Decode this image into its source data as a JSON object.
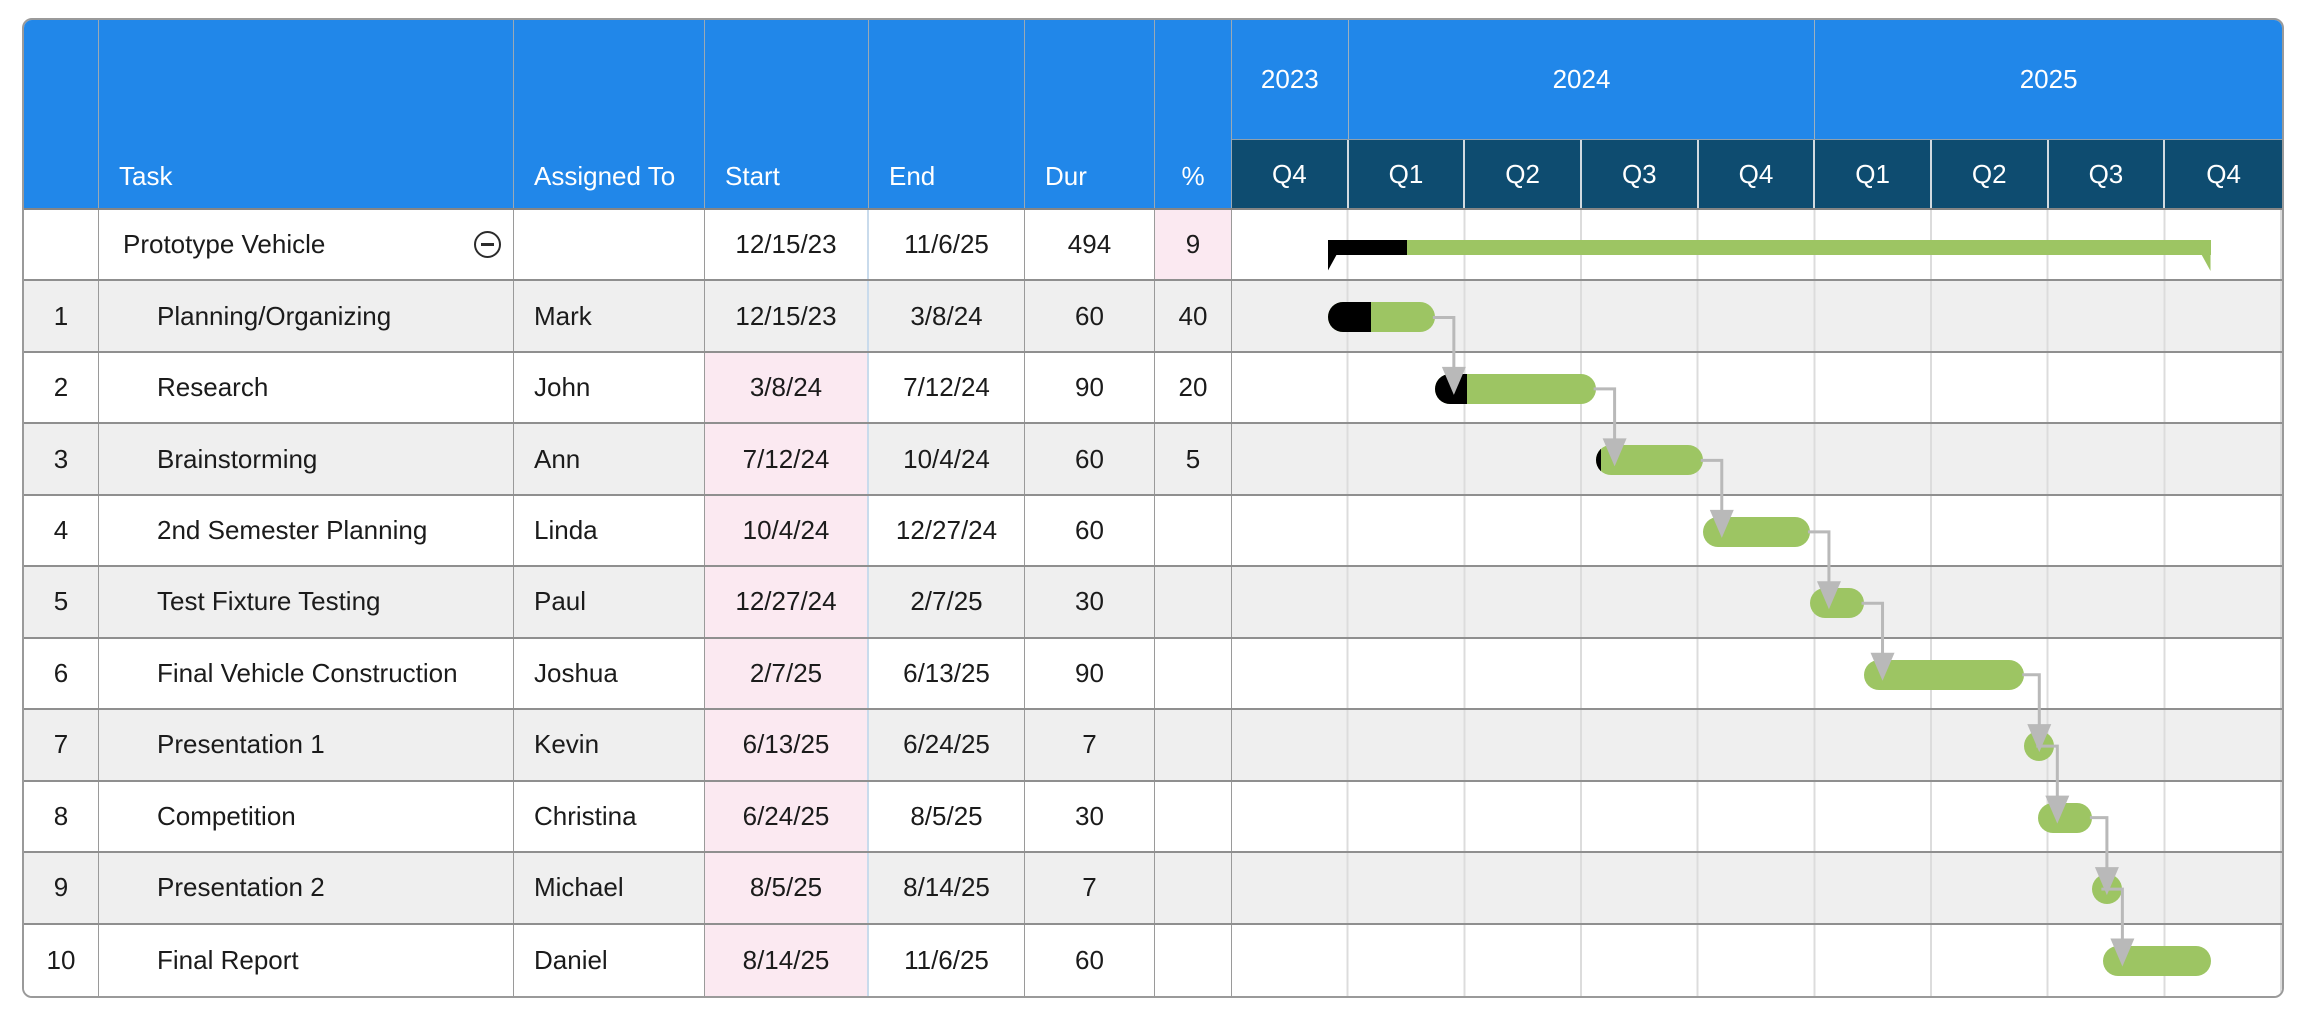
{
  "colors": {
    "header_blue": "#2187e9",
    "quarter_navy": "#0e4c70",
    "bar_green": "#9dc563",
    "bar_black": "#000000",
    "highlight_pink": "#fbe9f1",
    "row_alt_gray": "#efefef",
    "connector_gray": "#b9b9b9",
    "grid_light": "#dcdcdc",
    "border_gray": "#8f8f8f"
  },
  "icons": {
    "collapse": "minus-circle-icon"
  },
  "columns": [
    {
      "key": "num",
      "label": ""
    },
    {
      "key": "task",
      "label": "Task"
    },
    {
      "key": "assigned",
      "label": "Assigned To"
    },
    {
      "key": "start",
      "label": "Start"
    },
    {
      "key": "end",
      "label": "End"
    },
    {
      "key": "dur",
      "label": "Dur"
    },
    {
      "key": "pct",
      "label": "%"
    }
  ],
  "timeline": {
    "range_start": "10/1/23",
    "range_end": "12/31/25",
    "years": [
      {
        "label": "2023",
        "quarters": [
          "Q4"
        ]
      },
      {
        "label": "2024",
        "quarters": [
          "Q1",
          "Q2",
          "Q3",
          "Q4"
        ]
      },
      {
        "label": "2025",
        "quarters": [
          "Q1",
          "Q2",
          "Q3",
          "Q4"
        ]
      }
    ]
  },
  "tasks": [
    {
      "num": "",
      "name": "Prototype Vehicle",
      "assigned": "",
      "start": "12/15/23",
      "end": "11/6/25",
      "dur": "494",
      "pct": "9",
      "type": "summary",
      "indent": 0,
      "start_pink": false,
      "pct_pink": true,
      "collapse_icon": true
    },
    {
      "num": "1",
      "name": "Planning/Organizing",
      "assigned": "Mark",
      "start": "12/15/23",
      "end": "3/8/24",
      "dur": "60",
      "pct": "40",
      "type": "task",
      "indent": 1,
      "start_pink": false,
      "pct_pink": false,
      "collapse_icon": false
    },
    {
      "num": "2",
      "name": "Research",
      "assigned": "John",
      "start": "3/8/24",
      "end": "7/12/24",
      "dur": "90",
      "pct": "20",
      "type": "task",
      "indent": 1,
      "start_pink": true,
      "pct_pink": false,
      "collapse_icon": false
    },
    {
      "num": "3",
      "name": "Brainstorming",
      "assigned": "Ann",
      "start": "7/12/24",
      "end": "10/4/24",
      "dur": "60",
      "pct": "5",
      "type": "task",
      "indent": 1,
      "start_pink": true,
      "pct_pink": false,
      "collapse_icon": false
    },
    {
      "num": "4",
      "name": "2nd Semester Planning",
      "assigned": "Linda",
      "start": "10/4/24",
      "end": "12/27/24",
      "dur": "60",
      "pct": "",
      "type": "task",
      "indent": 1,
      "start_pink": true,
      "pct_pink": false,
      "collapse_icon": false
    },
    {
      "num": "5",
      "name": "Test Fixture Testing",
      "assigned": "Paul",
      "start": "12/27/24",
      "end": "2/7/25",
      "dur": "30",
      "pct": "",
      "type": "task",
      "indent": 1,
      "start_pink": true,
      "pct_pink": false,
      "collapse_icon": false
    },
    {
      "num": "6",
      "name": "Final Vehicle Construction",
      "assigned": "Joshua",
      "start": "2/7/25",
      "end": "6/13/25",
      "dur": "90",
      "pct": "",
      "type": "task",
      "indent": 1,
      "start_pink": true,
      "pct_pink": false,
      "collapse_icon": false
    },
    {
      "num": "7",
      "name": "Presentation 1",
      "assigned": "Kevin",
      "start": "6/13/25",
      "end": "6/24/25",
      "dur": "7",
      "pct": "",
      "type": "task",
      "indent": 1,
      "start_pink": true,
      "pct_pink": false,
      "collapse_icon": false
    },
    {
      "num": "8",
      "name": "Competition",
      "assigned": "Christina",
      "start": "6/24/25",
      "end": "8/5/25",
      "dur": "30",
      "pct": "",
      "type": "task",
      "indent": 1,
      "start_pink": true,
      "pct_pink": false,
      "collapse_icon": false
    },
    {
      "num": "9",
      "name": "Presentation 2",
      "assigned": "Michael",
      "start": "8/5/25",
      "end": "8/14/25",
      "dur": "7",
      "pct": "",
      "type": "task",
      "indent": 1,
      "start_pink": true,
      "pct_pink": false,
      "collapse_icon": false
    },
    {
      "num": "10",
      "name": "Final Report",
      "assigned": "Daniel",
      "start": "8/14/25",
      "end": "11/6/25",
      "dur": "60",
      "pct": "",
      "type": "task",
      "indent": 1,
      "start_pink": true,
      "pct_pink": false,
      "collapse_icon": false
    }
  ],
  "dependencies": [
    [
      1,
      2
    ],
    [
      2,
      3
    ],
    [
      3,
      4
    ],
    [
      4,
      5
    ],
    [
      5,
      6
    ],
    [
      6,
      7
    ],
    [
      7,
      8
    ],
    [
      8,
      9
    ],
    [
      9,
      10
    ]
  ],
  "chart_data": {
    "type": "bar",
    "subtype": "gantt",
    "title": "",
    "x_axis": {
      "unit": "quarters",
      "start": "10/1/23",
      "end": "12/31/25",
      "groups": [
        {
          "year": "2023",
          "quarters": [
            "Q4"
          ]
        },
        {
          "year": "2024",
          "quarters": [
            "Q1",
            "Q2",
            "Q3",
            "Q4"
          ]
        },
        {
          "year": "2025",
          "quarters": [
            "Q1",
            "Q2",
            "Q3",
            "Q4"
          ]
        }
      ]
    },
    "grid": true,
    "legend": null,
    "bars": [
      {
        "task": "Prototype Vehicle",
        "assigned": null,
        "start": "12/15/23",
        "end": "11/6/25",
        "duration": 494,
        "percent_complete": 9,
        "style": "summary"
      },
      {
        "task": "Planning/Organizing",
        "assigned": "Mark",
        "start": "12/15/23",
        "end": "3/8/24",
        "duration": 60,
        "percent_complete": 40,
        "style": "pill"
      },
      {
        "task": "Research",
        "assigned": "John",
        "start": "3/8/24",
        "end": "7/12/24",
        "duration": 90,
        "percent_complete": 20,
        "style": "pill"
      },
      {
        "task": "Brainstorming",
        "assigned": "Ann",
        "start": "7/12/24",
        "end": "10/4/24",
        "duration": 60,
        "percent_complete": 5,
        "style": "pill"
      },
      {
        "task": "2nd Semester Planning",
        "assigned": "Linda",
        "start": "10/4/24",
        "end": "12/27/24",
        "duration": 60,
        "percent_complete": null,
        "style": "pill"
      },
      {
        "task": "Test Fixture Testing",
        "assigned": "Paul",
        "start": "12/27/24",
        "end": "2/7/25",
        "duration": 30,
        "percent_complete": null,
        "style": "pill"
      },
      {
        "task": "Final Vehicle Construction",
        "assigned": "Joshua",
        "start": "2/7/25",
        "end": "6/13/25",
        "duration": 90,
        "percent_complete": null,
        "style": "pill"
      },
      {
        "task": "Presentation 1",
        "assigned": "Kevin",
        "start": "6/13/25",
        "end": "6/24/25",
        "duration": 7,
        "percent_complete": null,
        "style": "pill"
      },
      {
        "task": "Competition",
        "assigned": "Christina",
        "start": "6/24/25",
        "end": "8/5/25",
        "duration": 30,
        "percent_complete": null,
        "style": "pill"
      },
      {
        "task": "Presentation 2",
        "assigned": "Michael",
        "start": "8/5/25",
        "end": "8/14/25",
        "duration": 7,
        "percent_complete": null,
        "style": "pill"
      },
      {
        "task": "Final Report",
        "assigned": "Daniel",
        "start": "8/14/25",
        "end": "11/6/25",
        "duration": 60,
        "percent_complete": null,
        "style": "pill"
      }
    ],
    "links_between_consecutive_tasks": [
      [
        1,
        2
      ],
      [
        2,
        3
      ],
      [
        3,
        4
      ],
      [
        4,
        5
      ],
      [
        5,
        6
      ],
      [
        6,
        7
      ],
      [
        7,
        8
      ],
      [
        8,
        9
      ],
      [
        9,
        10
      ]
    ]
  }
}
